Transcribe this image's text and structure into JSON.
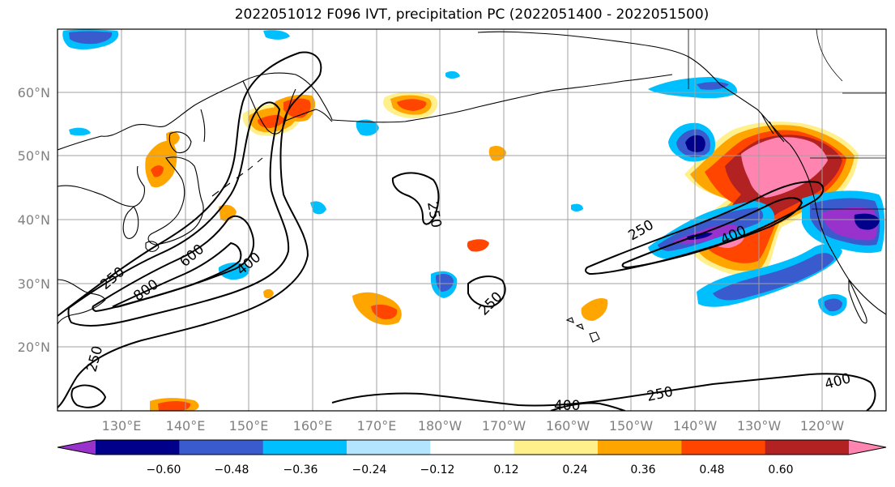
{
  "title": "2022051012 F096 IVT, precipitation PC (2022051400 - 2022051500)",
  "lat_labels": [
    "60°N",
    "50°N",
    "40°N",
    "30°N",
    "20°N"
  ],
  "lon_labels": [
    "130°E",
    "140°E",
    "150°E",
    "160°E",
    "170°E",
    "180°W",
    "170°W",
    "160°W",
    "150°W",
    "140°W",
    "130°W",
    "120°W"
  ],
  "colorbar": {
    "colors": [
      "#9932cc",
      "#00008b",
      "#3a5bcd",
      "#00bfff",
      "#b3e5ff",
      "#ffffff",
      "#fff08c",
      "#ffa500",
      "#ff4500",
      "#b22222",
      "#ff85b0"
    ],
    "ticks": [
      "−0.60",
      "−0.48",
      "−0.36",
      "−0.24",
      "−0.12",
      "0.12",
      "0.24",
      "0.36",
      "0.48",
      "0.60"
    ]
  },
  "contour_labels": [
    "250",
    "250",
    "250",
    "250",
    "250",
    "400",
    "400",
    "600",
    "800",
    "400",
    "250",
    "400"
  ]
}
